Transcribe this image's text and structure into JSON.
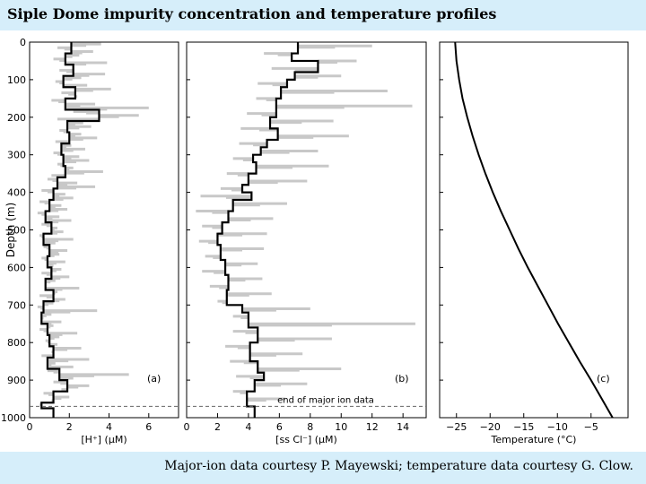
{
  "title": "Siple Dome impurity concentration and temperature profiles",
  "caption": "Major-ion data courtesy P. Mayewski; temperature data courtesy G. Clow.",
  "colors": {
    "band": "#d6eefa",
    "noise": "#c8c8c8",
    "line": "#000000"
  },
  "chart_data": [
    {
      "type": "line",
      "panel": "(a)",
      "ylabel": "Depth (m)",
      "xlabel": "[H⁺] (μM)",
      "xlim": [
        0,
        7.5
      ],
      "ylim": [
        0,
        1000
      ],
      "xticks": [
        0,
        2,
        4,
        6
      ],
      "yticks": [
        0,
        100,
        200,
        300,
        400,
        500,
        600,
        700,
        800,
        900,
        1000
      ],
      "series": [
        {
          "name": "step profile",
          "depth": [
            0,
            30,
            60,
            90,
            120,
            150,
            180,
            210,
            240,
            270,
            300,
            330,
            360,
            390,
            420,
            450,
            480,
            510,
            540,
            570,
            600,
            630,
            660,
            690,
            720,
            750,
            780,
            810,
            840,
            870,
            900,
            930,
            960,
            975
          ],
          "values": [
            2.1,
            1.8,
            2.2,
            1.7,
            2.3,
            1.8,
            3.5,
            1.9,
            2.0,
            1.6,
            1.7,
            1.8,
            1.4,
            1.2,
            1.0,
            0.8,
            1.1,
            0.7,
            1.0,
            0.9,
            1.1,
            0.8,
            1.2,
            0.7,
            0.6,
            0.9,
            1.0,
            1.2,
            0.9,
            1.5,
            1.9,
            1.2,
            0.6,
            1.2
          ]
        },
        {
          "name": "raw data (grey)",
          "depth": [
            5,
            15,
            25,
            35,
            45,
            55,
            65,
            75,
            85,
            95,
            105,
            115,
            125,
            135,
            145,
            155,
            165,
            175,
            185,
            195,
            205,
            215,
            225,
            235,
            245,
            255,
            265,
            275,
            285,
            295,
            305,
            315,
            325,
            335,
            345,
            355,
            365,
            375,
            385,
            395,
            405,
            415,
            425,
            435,
            445,
            455,
            465,
            475,
            485,
            495,
            505,
            515,
            525,
            535,
            545,
            555,
            565,
            575,
            585,
            595,
            605,
            615,
            625,
            635,
            645,
            655,
            665,
            675,
            685,
            695,
            705,
            715,
            725,
            735,
            745,
            755,
            765,
            775,
            785,
            795,
            805,
            815,
            825,
            835,
            845,
            855,
            865,
            875,
            885,
            895,
            905,
            915,
            925,
            935,
            945,
            955,
            965
          ],
          "values": [
            3.6,
            1.4,
            3.2,
            2.5,
            1.2,
            3.9,
            2.2,
            1.5,
            3.8,
            2.6,
            1.3,
            2.9,
            4.1,
            1.6,
            2.4,
            1.1,
            3.3,
            6.0,
            2.2,
            5.5,
            1.4,
            2.7,
            3.1,
            1.5,
            2.6,
            3.4,
            1.3,
            2.1,
            2.8,
            1.2,
            2.5,
            3.0,
            1.4,
            2.2,
            3.7,
            1.1,
            0.9,
            2.4,
            3.3,
            0.6,
            1.8,
            2.2,
            0.5,
            1.6,
            1.9,
            0.4,
            1.5,
            2.1,
            0.6,
            1.4,
            1.7,
            0.5,
            2.2,
            1.3,
            0.7,
            1.9,
            1.5,
            0.6,
            1.8,
            1.2,
            1.6,
            0.6,
            2.0,
            1.3,
            0.8,
            2.5,
            1.4,
            0.5,
            1.8,
            1.2,
            0.4,
            3.4,
            1.1,
            0.7,
            1.6,
            1.2,
            0.5,
            2.4,
            1.5,
            0.8,
            1.4,
            2.6,
            1.1,
            0.6,
            3.0,
            1.3,
            2.2,
            0.9,
            5.0,
            2.2,
            1.2,
            3.0,
            1.6,
            0.7,
            2.0,
            1.1,
            0.5
          ]
        }
      ]
    },
    {
      "type": "line",
      "panel": "(b)",
      "xlabel": "[ss Cl⁻] (μM)",
      "xlim": [
        0,
        15.5
      ],
      "ylim": [
        0,
        1000
      ],
      "xticks": [
        0,
        2,
        4,
        6,
        8,
        10,
        12,
        14
      ],
      "annotation": "end of major ion data",
      "annotation_depth": 970,
      "series": [
        {
          "name": "step profile",
          "depth": [
            0,
            30,
            50,
            80,
            100,
            120,
            150,
            200,
            230,
            260,
            280,
            300,
            320,
            350,
            380,
            400,
            420,
            450,
            480,
            510,
            540,
            580,
            620,
            660,
            700,
            720,
            760,
            800,
            850,
            880,
            900,
            930,
            970
          ],
          "values": [
            7.2,
            6.8,
            8.5,
            7.0,
            6.5,
            6.1,
            5.8,
            5.4,
            5.9,
            5.2,
            4.8,
            4.3,
            4.5,
            4.0,
            3.6,
            4.2,
            3.0,
            2.7,
            2.3,
            2.0,
            2.2,
            2.5,
            2.7,
            2.6,
            3.6,
            4.0,
            4.6,
            4.1,
            4.6,
            5.0,
            4.4,
            3.9,
            4.4
          ]
        },
        {
          "name": "raw data (grey)",
          "depth": [
            10,
            30,
            50,
            70,
            90,
            110,
            130,
            150,
            170,
            190,
            210,
            230,
            250,
            270,
            290,
            310,
            330,
            350,
            370,
            390,
            410,
            430,
            450,
            470,
            490,
            510,
            530,
            550,
            570,
            590,
            610,
            630,
            650,
            670,
            690,
            710,
            730,
            750,
            770,
            790,
            810,
            830,
            850,
            870,
            890,
            910,
            930,
            950
          ],
          "values": [
            12.0,
            5.0,
            11.0,
            5.5,
            10.0,
            4.6,
            13.0,
            4.5,
            14.6,
            3.9,
            9.5,
            3.5,
            10.5,
            3.4,
            8.5,
            3.0,
            9.2,
            2.6,
            7.8,
            2.2,
            0.9,
            6.5,
            0.6,
            5.6,
            1.0,
            5.2,
            0.8,
            5.0,
            1.2,
            4.6,
            1.0,
            4.9,
            1.5,
            5.5,
            2.0,
            8.0,
            3.0,
            14.8,
            3.0,
            9.4,
            2.5,
            7.5,
            2.8,
            10.0,
            3.2,
            7.8,
            3.0,
            6.4
          ]
        }
      ]
    },
    {
      "type": "line",
      "panel": "(c)",
      "xlabel": "Temperature (°C)",
      "xlim": [
        -27.5,
        0.5
      ],
      "ylim": [
        0,
        1000
      ],
      "xticks": [
        -25,
        -20,
        -15,
        -10,
        -5
      ],
      "series": [
        {
          "name": "temperature",
          "depth": [
            0,
            50,
            100,
            150,
            200,
            250,
            300,
            350,
            400,
            450,
            500,
            550,
            600,
            650,
            700,
            750,
            800,
            850,
            900,
            950,
            1000
          ],
          "values": [
            -25.2,
            -25.0,
            -24.6,
            -24.1,
            -23.4,
            -22.6,
            -21.7,
            -20.7,
            -19.6,
            -18.4,
            -17.1,
            -15.8,
            -14.4,
            -12.9,
            -11.4,
            -9.9,
            -8.3,
            -6.7,
            -5.0,
            -3.4,
            -1.8
          ]
        }
      ]
    }
  ]
}
